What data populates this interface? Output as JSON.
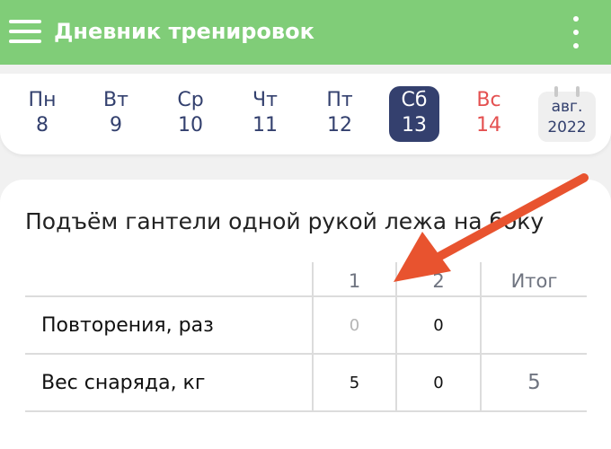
{
  "appbar": {
    "title": "Дневник тренировок",
    "menu_icon": "hamburger-icon",
    "more_icon": "more-vert-icon"
  },
  "week": {
    "days": [
      {
        "name": "Пн",
        "num": "8"
      },
      {
        "name": "Вт",
        "num": "9"
      },
      {
        "name": "Ср",
        "num": "10"
      },
      {
        "name": "Чт",
        "num": "11"
      },
      {
        "name": "Пт",
        "num": "12"
      },
      {
        "name": "Сб",
        "num": "13",
        "selected": true
      },
      {
        "name": "Вс",
        "num": "14",
        "weekend": true
      }
    ],
    "month": "авг.",
    "year": "2022"
  },
  "exercise": {
    "title": "Подъём гантели одной рукой лежа на боку",
    "columns": [
      "1",
      "2",
      "Итог"
    ],
    "rows": [
      {
        "label": "Повторения, раз",
        "values": [
          "0",
          "0",
          ""
        ]
      },
      {
        "label": "Вес снаряда, кг",
        "values": [
          "5",
          "0",
          "5"
        ]
      }
    ]
  },
  "colors": {
    "appbar": "#80cd78",
    "selected_day": "#34406e",
    "weekend": "#e45050",
    "annotation_arrow": "#e8532f"
  }
}
